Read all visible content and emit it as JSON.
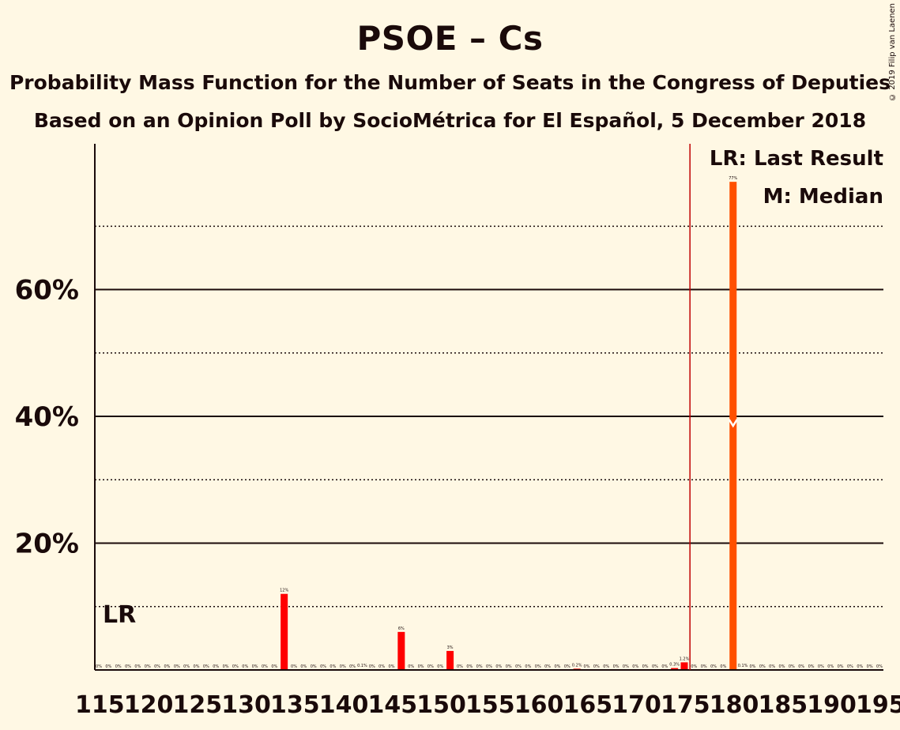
{
  "title": "PSOE – Cs",
  "subtitle1": "Probability Mass Function for the Number of Seats in the Congress of Deputies",
  "subtitle2": "Based on an Opinion Poll by SocioMétrica for El Español, 5 December 2018",
  "copyright": "© 2019 Filip van Laenen",
  "legend": {
    "last_result": "LR: Last Result",
    "median": "M: Median"
  },
  "lr_marker": "LR",
  "colors": {
    "background": "#fff8e4",
    "bar_red": "#ff0000",
    "bar_orange": "#ff5000",
    "last_result_line": "#c00000",
    "text": "#1a0a0a"
  },
  "chart_data": {
    "type": "bar",
    "x": [
      115,
      116,
      117,
      118,
      119,
      120,
      121,
      122,
      123,
      124,
      125,
      126,
      127,
      128,
      129,
      130,
      131,
      132,
      133,
      134,
      135,
      136,
      137,
      138,
      139,
      140,
      141,
      142,
      143,
      144,
      145,
      146,
      147,
      148,
      149,
      150,
      151,
      152,
      153,
      154,
      155,
      156,
      157,
      158,
      159,
      160,
      161,
      162,
      163,
      164,
      165,
      166,
      167,
      168,
      169,
      170,
      171,
      172,
      173,
      174,
      175,
      176,
      177,
      178,
      179,
      180,
      181,
      182,
      183,
      184,
      185,
      186,
      187,
      188,
      189,
      190,
      191,
      192,
      193,
      194,
      195
    ],
    "values": [
      0,
      0,
      0,
      0,
      0,
      0,
      0,
      0,
      0,
      0,
      0,
      0,
      0,
      0,
      0,
      0,
      0,
      0,
      0,
      12,
      0,
      0,
      0,
      0,
      0,
      0,
      0,
      0.1,
      0,
      0,
      0,
      6,
      0,
      0,
      0,
      0,
      3,
      0,
      0,
      0,
      0,
      0,
      0,
      0,
      0,
      0,
      0,
      0,
      0,
      0.2,
      0,
      0,
      0,
      0,
      0,
      0,
      0,
      0,
      0,
      0.3,
      1.2,
      0,
      0,
      0,
      0,
      77,
      0.1,
      0,
      0,
      0,
      0,
      0,
      0,
      0,
      0,
      0,
      0,
      0,
      0,
      0,
      0
    ],
    "labels": [
      "0%",
      "0%",
      "0%",
      "0%",
      "0%",
      "0%",
      "0%",
      "0%",
      "0%",
      "0%",
      "0%",
      "0%",
      "0%",
      "0%",
      "0%",
      "0%",
      "0%",
      "0%",
      "0%",
      "12%",
      "0%",
      "0%",
      "0%",
      "0%",
      "0%",
      "0%",
      "0%",
      "0.1%",
      "0%",
      "0%",
      "0%",
      "6%",
      "0%",
      "0%",
      "0%",
      "0%",
      "3%",
      "0%",
      "0%",
      "0%",
      "0%",
      "0%",
      "0%",
      "0%",
      "0%",
      "0%",
      "0%",
      "0%",
      "0%",
      "0.2%",
      "0%",
      "0%",
      "0%",
      "0%",
      "0%",
      "0%",
      "0%",
      "0%",
      "0%",
      "0.3%",
      "1.2%",
      "0%",
      "0%",
      "0%",
      "0%",
      "77%",
      "0.1%",
      "0%",
      "0%",
      "0%",
      "0%",
      "0%",
      "0%",
      "0%",
      "0%",
      "0%",
      "0%",
      "0%",
      "0%",
      "0%",
      "0%"
    ],
    "x_tick_labels": [
      "115",
      "120",
      "125",
      "130",
      "135",
      "140",
      "145",
      "150",
      "155",
      "160",
      "165",
      "170",
      "175",
      "180",
      "185",
      "190",
      "195"
    ],
    "y_tick_labels": [
      "20%",
      "40%",
      "60%"
    ],
    "y_ticks": [
      20,
      40,
      60
    ],
    "y_gridlines_major": [
      20,
      40,
      60
    ],
    "y_gridlines_minor": [
      10,
      30,
      50,
      70
    ],
    "ylim": [
      0,
      83
    ],
    "last_result": 176,
    "median": 180,
    "orange_from": 176
  }
}
